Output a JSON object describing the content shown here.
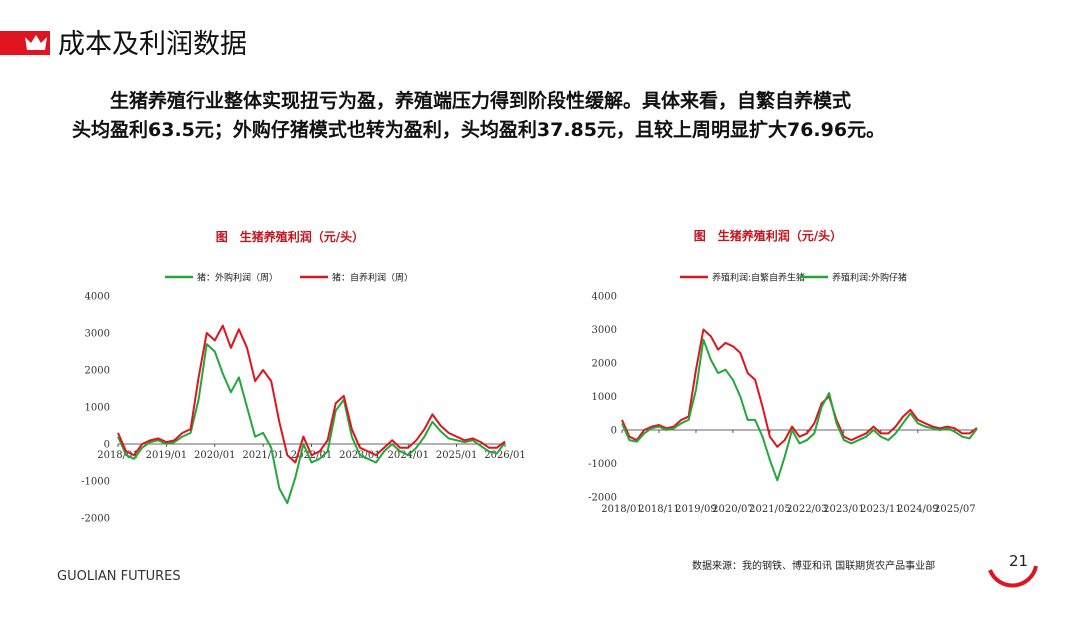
{
  "header": {
    "title": "成本及利润数据"
  },
  "paragraph": [
    "生猪养殖行业整体实现扭亏为盈，养殖端压力得到阶段性缓解。具体来看，自繁自养模式",
    "头均盈利63.5元；外购仔猪模式也转为盈利，头均盈利37.85元，且较上周明显扩大76.96元。"
  ],
  "footer": {
    "brand": "GUOLIAN FUTURES",
    "source": "数据来源：我的钢铁、博亚和讯 国联期货农产品事业部",
    "page": "21"
  },
  "chart_data": [
    {
      "type": "line",
      "title": "图　生猪养殖利润（元/头）",
      "x": [
        "2018/01",
        "2018/03",
        "2018/05",
        "2018/07",
        "2018/09",
        "2018/11",
        "2019/01",
        "2019/03",
        "2019/05",
        "2019/07",
        "2019/09",
        "2019/11",
        "2020/01",
        "2020/03",
        "2020/05",
        "2020/07",
        "2020/09",
        "2020/11",
        "2021/01",
        "2021/03",
        "2021/05",
        "2021/07",
        "2021/09",
        "2021/11",
        "2022/01",
        "2022/03",
        "2022/05",
        "2022/07",
        "2022/09",
        "2022/11",
        "2023/01",
        "2023/03",
        "2023/05",
        "2023/07",
        "2023/09",
        "2023/11",
        "2024/01",
        "2024/03",
        "2024/05",
        "2024/07",
        "2024/09",
        "2024/11",
        "2025/01",
        "2025/03",
        "2025/05",
        "2025/07",
        "2025/09",
        "2025/11",
        "2026/01"
      ],
      "series": [
        {
          "name": "猪：外购利润（周）",
          "color": "#22a83a",
          "values": [
            200,
            -300,
            -400,
            -100,
            50,
            100,
            0,
            50,
            200,
            300,
            1200,
            2700,
            2500,
            1900,
            1400,
            1800,
            1000,
            200,
            300,
            -100,
            -1200,
            -1600,
            -900,
            0,
            -500,
            -400,
            -200,
            900,
            1200,
            200,
            -300,
            -400,
            -500,
            -200,
            0,
            -200,
            -300,
            -100,
            200,
            600,
            350,
            150,
            100,
            50,
            100,
            -50,
            -200,
            -250,
            38
          ]
        },
        {
          "name": "猪：自养利润（周）",
          "color": "#e0141e",
          "values": [
            300,
            -200,
            -300,
            0,
            100,
            150,
            50,
            100,
            300,
            400,
            1800,
            3000,
            2800,
            3200,
            2600,
            3100,
            2600,
            1700,
            2000,
            1700,
            600,
            -300,
            -500,
            200,
            -300,
            -200,
            100,
            1100,
            1300,
            400,
            -100,
            -200,
            -300,
            -100,
            100,
            -100,
            -100,
            100,
            400,
            800,
            500,
            300,
            200,
            100,
            150,
            50,
            -100,
            -100,
            64
          ]
        }
      ],
      "ylim": [
        -2000,
        4000
      ],
      "yticks": [
        -2000,
        -1000,
        0,
        1000,
        2000,
        3000,
        4000
      ],
      "xticks": [
        "2018/01",
        "2019/01",
        "2020/01",
        "2021/01",
        "2022/01",
        "2023/01",
        "2024/01",
        "2025/01",
        "2026/01"
      ]
    },
    {
      "type": "line",
      "title": "图　生猪养殖利润（元/头）",
      "x": [
        "2018/01",
        "2018/03",
        "2018/05",
        "2018/07",
        "2018/09",
        "2018/11",
        "2019/01",
        "2019/03",
        "2019/05",
        "2019/07",
        "2019/09",
        "2019/11",
        "2020/01",
        "2020/03",
        "2020/05",
        "2020/07",
        "2020/09",
        "2020/11",
        "2021/01",
        "2021/03",
        "2021/05",
        "2021/07",
        "2021/09",
        "2021/11",
        "2022/01",
        "2022/03",
        "2022/05",
        "2022/07",
        "2022/09",
        "2022/11",
        "2023/01",
        "2023/03",
        "2023/05",
        "2023/07",
        "2023/09",
        "2023/11",
        "2024/01",
        "2024/03",
        "2024/05",
        "2024/07",
        "2024/09",
        "2024/11",
        "2025/01",
        "2025/03",
        "2025/05",
        "2025/07",
        "2025/09",
        "2025/11",
        "2026/01"
      ],
      "series": [
        {
          "name": "养殖利润:自繁自养生猪",
          "color": "#e0141e",
          "values": [
            300,
            -200,
            -300,
            0,
            100,
            150,
            50,
            100,
            300,
            400,
            1800,
            3000,
            2800,
            2400,
            2600,
            2500,
            2300,
            1700,
            1500,
            700,
            -200,
            -500,
            -300,
            100,
            -200,
            -100,
            200,
            800,
            1000,
            300,
            -200,
            -300,
            -200,
            -100,
            100,
            -100,
            -100,
            100,
            400,
            600,
            300,
            200,
            100,
            50,
            100,
            50,
            -100,
            -100,
            64
          ]
        },
        {
          "name": "养殖利润:外购仔猪",
          "color": "#22a83a",
          "values": [
            200,
            -300,
            -350,
            -100,
            50,
            100,
            0,
            50,
            200,
            300,
            1200,
            2700,
            2100,
            1700,
            1800,
            1500,
            1000,
            300,
            300,
            -200,
            -900,
            -1500,
            -800,
            0,
            -400,
            -300,
            -100,
            700,
            1100,
            200,
            -300,
            -400,
            -300,
            -200,
            0,
            -200,
            -300,
            -100,
            200,
            500,
            200,
            100,
            50,
            0,
            50,
            -50,
            -200,
            -250,
            38
          ]
        }
      ],
      "ylim": [
        -2000,
        4000
      ],
      "yticks": [
        -2000,
        -1000,
        0,
        1000,
        2000,
        3000,
        4000
      ],
      "xticks": [
        "2018/01",
        "2018/11",
        "2019/09",
        "2020/07",
        "2021/05",
        "2022/03",
        "2023/01",
        "2023/11",
        "2024/09",
        "2025/07"
      ]
    }
  ]
}
